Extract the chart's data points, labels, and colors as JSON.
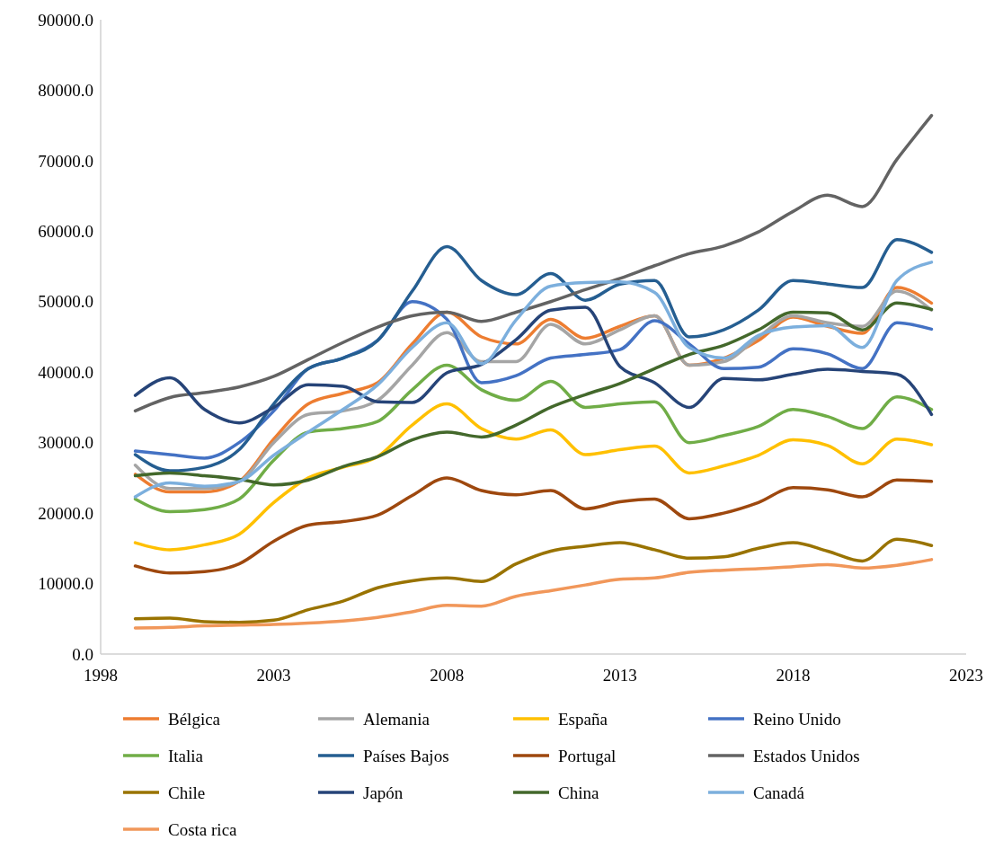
{
  "chart_data": {
    "type": "line",
    "x": [
      1999,
      2000,
      2001,
      2002,
      2003,
      2004,
      2005,
      2006,
      2007,
      2008,
      2009,
      2010,
      2011,
      2012,
      2013,
      2014,
      2015,
      2016,
      2017,
      2018,
      2019,
      2020,
      2021,
      2022
    ],
    "xlim": [
      1998,
      2023
    ],
    "xticks": [
      1998,
      2003,
      2008,
      2013,
      2018,
      2023
    ],
    "ylim": [
      0,
      90000
    ],
    "yticks": [
      {
        "value": 0,
        "label": "0.0"
      },
      {
        "value": 10000,
        "label": "10000.0"
      },
      {
        "value": 20000,
        "label": "20000.0"
      },
      {
        "value": 30000,
        "label": "30000.0"
      },
      {
        "value": 40000,
        "label": "40000.0"
      },
      {
        "value": 50000,
        "label": "50000.0"
      },
      {
        "value": 60000,
        "label": "60000.0"
      },
      {
        "value": 70000,
        "label": "70000.0"
      },
      {
        "value": 80000,
        "label": "80000.0"
      },
      {
        "value": 90000,
        "label": "90000.0"
      }
    ],
    "grid": false,
    "legend": "bottom",
    "marker": "none",
    "line_style": "solid",
    "series": [
      {
        "name": "Bélgica",
        "color": "#ed7d31",
        "values": [
          25500,
          23000,
          23000,
          24500,
          30500,
          35500,
          37000,
          38500,
          44000,
          48500,
          45000,
          44000,
          47500,
          44800,
          46500,
          48000,
          41000,
          42000,
          44500,
          47800,
          46500,
          45500,
          52000,
          49800
        ]
      },
      {
        "name": "Alemania",
        "color": "#a5a5a5",
        "values": [
          26800,
          23500,
          23500,
          24500,
          30000,
          34000,
          34500,
          36000,
          41000,
          45600,
          41500,
          41500,
          46800,
          44000,
          46000,
          48000,
          41000,
          41500,
          45000,
          48000,
          47000,
          46500,
          51500,
          48800
        ]
      },
      {
        "name": "España",
        "color": "#ffc000",
        "values": [
          15800,
          14800,
          15500,
          17000,
          21500,
          25000,
          26500,
          28000,
          32500,
          35500,
          32000,
          30500,
          31800,
          28300,
          29000,
          29500,
          25700,
          26700,
          28200,
          30400,
          29600,
          27000,
          30500,
          29700
        ]
      },
      {
        "name": "Reino Unido",
        "color": "#4472c4",
        "values": [
          28800,
          28300,
          27800,
          30000,
          34500,
          40500,
          42000,
          44500,
          50000,
          47500,
          38500,
          39500,
          42000,
          42500,
          43200,
          47300,
          44000,
          40500,
          40700,
          43300,
          42600,
          40500,
          47000,
          46100
        ]
      },
      {
        "name": "Italia",
        "color": "#70ad47",
        "values": [
          22000,
          20200,
          20500,
          22000,
          27500,
          31500,
          32000,
          33000,
          37500,
          41000,
          37500,
          36000,
          38700,
          35000,
          35500,
          35800,
          30000,
          31000,
          32300,
          34700,
          33700,
          32000,
          36500,
          34700
        ]
      },
      {
        "name": "Países Bajos",
        "color": "#255e91",
        "values": [
          28300,
          26000,
          26500,
          29000,
          35500,
          40500,
          42000,
          44500,
          51500,
          57800,
          53000,
          51000,
          54000,
          50200,
          52500,
          53000,
          45000,
          46000,
          48800,
          53000,
          52500,
          52000,
          58800,
          57000
        ]
      },
      {
        "name": "Portugal",
        "color": "#9e480e",
        "values": [
          12500,
          11500,
          11700,
          12800,
          16000,
          18300,
          18800,
          19700,
          22500,
          25000,
          23200,
          22600,
          23200,
          20600,
          21600,
          22000,
          19200,
          20000,
          21500,
          23600,
          23300,
          22300,
          24700,
          24500
        ]
      },
      {
        "name": "Estados Unidos",
        "color": "#636363",
        "values": [
          34500,
          36400,
          37100,
          37900,
          39400,
          41800,
          44200,
          46400,
          48000,
          48500,
          47200,
          48500,
          50000,
          51700,
          53300,
          55100,
          56800,
          57900,
          59900,
          62800,
          65100,
          63500,
          70200,
          76400
        ]
      },
      {
        "name": "Chile",
        "color": "#997300",
        "values": [
          5000,
          5100,
          4600,
          4500,
          4800,
          6300,
          7500,
          9400,
          10400,
          10800,
          10300,
          12800,
          14600,
          15300,
          15800,
          14800,
          13600,
          13800,
          15000,
          15800,
          14600,
          13200,
          16300,
          15400
        ]
      },
      {
        "name": "Japón",
        "color": "#264478",
        "values": [
          36700,
          39200,
          34700,
          32800,
          35000,
          38200,
          38000,
          35800,
          35700,
          39900,
          41100,
          44600,
          48800,
          49200,
          40800,
          38500,
          35000,
          39100,
          38900,
          39700,
          40400,
          40100,
          39700,
          34000
        ]
      },
      {
        "name": "China",
        "color": "#43682b",
        "values": [
          25300,
          25700,
          25300,
          24800,
          24000,
          24700,
          26600,
          28000,
          30400,
          31500,
          30800,
          32500,
          35000,
          36800,
          38400,
          40500,
          42500,
          43800,
          46000,
          48500,
          48400,
          46000,
          49800,
          48900
        ]
      },
      {
        "name": "Canadá",
        "color": "#7cafdd",
        "values": [
          22300,
          24300,
          23800,
          24500,
          28200,
          31500,
          34700,
          38200,
          43500,
          47000,
          41200,
          47400,
          52200,
          52700,
          52800,
          51300,
          43500,
          42000,
          45200,
          46400,
          46600,
          43500,
          53000,
          55600
        ]
      },
      {
        "name": "Costa rica",
        "color": "#f1975a",
        "values": [
          3700,
          3800,
          4000,
          4100,
          4200,
          4400,
          4700,
          5200,
          6000,
          6900,
          6800,
          8200,
          9000,
          9800,
          10600,
          10800,
          11600,
          11900,
          12100,
          12400,
          12700,
          12200,
          12600,
          13400
        ]
      }
    ]
  }
}
